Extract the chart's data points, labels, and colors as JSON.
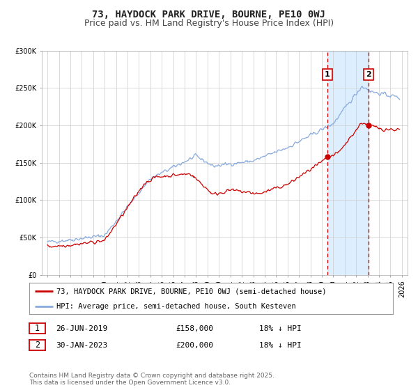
{
  "title": "73, HAYDOCK PARK DRIVE, BOURNE, PE10 0WJ",
  "subtitle": "Price paid vs. HM Land Registry's House Price Index (HPI)",
  "ylim": [
    0,
    300000
  ],
  "yticks": [
    0,
    50000,
    100000,
    150000,
    200000,
    250000,
    300000
  ],
  "ytick_labels": [
    "£0",
    "£50K",
    "£100K",
    "£150K",
    "£200K",
    "£250K",
    "£300K"
  ],
  "xlim_start": 1994.5,
  "xlim_end": 2026.5,
  "background_color": "#ffffff",
  "plot_bg_color": "#ffffff",
  "grid_color": "#cccccc",
  "red_line_color": "#cc0000",
  "blue_line_color": "#88aadd",
  "shade_color": "#ddeeff",
  "marker1_date": 2019.49,
  "marker1_value": 158000,
  "marker2_date": 2023.08,
  "marker2_value": 200000,
  "vline1_x": 2019.49,
  "vline2_x": 2023.08,
  "legend_label_red": "73, HAYDOCK PARK DRIVE, BOURNE, PE10 0WJ (semi-detached house)",
  "legend_label_blue": "HPI: Average price, semi-detached house, South Kesteven",
  "footer_text": "Contains HM Land Registry data © Crown copyright and database right 2025.\nThis data is licensed under the Open Government Licence v3.0.",
  "table_row1": [
    "1",
    "26-JUN-2019",
    "£158,000",
    "18% ↓ HPI"
  ],
  "table_row2": [
    "2",
    "30-JAN-2023",
    "£200,000",
    "18% ↓ HPI"
  ],
  "title_fontsize": 10,
  "subtitle_fontsize": 9,
  "tick_fontsize": 7,
  "legend_fontsize": 7.5,
  "footer_fontsize": 6.5
}
